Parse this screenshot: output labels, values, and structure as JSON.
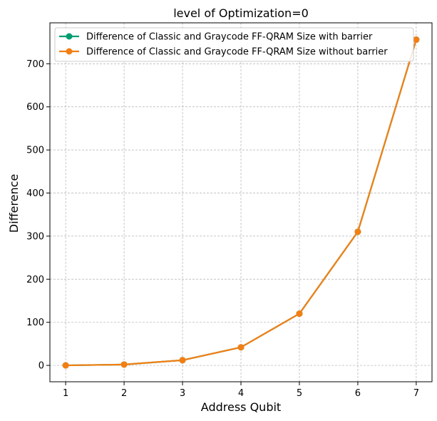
{
  "chart_data": {
    "type": "line",
    "title": "level of Optimization=0",
    "xlabel": "Address Qubit",
    "ylabel": "Difference",
    "x": [
      1,
      2,
      3,
      4,
      5,
      6,
      7
    ],
    "xlim": [
      0.73,
      7.27
    ],
    "ylim": [
      -38,
      795
    ],
    "xticks": [
      "1",
      "2",
      "3",
      "4",
      "5",
      "6",
      "7"
    ],
    "yticks": [
      "0",
      "100",
      "200",
      "300",
      "400",
      "500",
      "600",
      "700"
    ],
    "grid": true,
    "legend_position": "top-left",
    "series": [
      {
        "name": "Difference of Classic and Graycode FF-QRAM Size with barrier",
        "color": "#009e73",
        "values": [
          0,
          2,
          12,
          42,
          120,
          310,
          756
        ]
      },
      {
        "name": "Difference of Classic and Graycode FF-QRAM Size without barrier",
        "color": "#f37f13",
        "values": [
          0,
          2,
          12,
          42,
          120,
          310,
          756
        ]
      }
    ]
  }
}
